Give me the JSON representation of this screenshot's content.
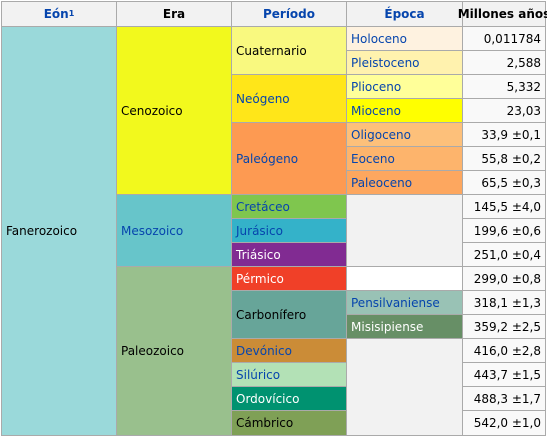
{
  "headers": {
    "eon": "Eón",
    "eon_note": "1",
    "era": "Era",
    "periodo": "Período",
    "epoca": "Época",
    "millones": "Millones años"
  },
  "eon": {
    "label": "Fanerozoico",
    "color": "#9ad9da"
  },
  "eras": [
    {
      "label": "Cenozoico",
      "color": "#f2f91d"
    },
    {
      "label": "Mesozoico",
      "color": "#67c5ca"
    },
    {
      "label": "Paleozoico",
      "color": "#99c08d"
    }
  ],
  "periods": [
    {
      "label": "Cuaternario",
      "color": "#f9f97f"
    },
    {
      "label": "Neógeno",
      "color": "#ffe619"
    },
    {
      "label": "Paleógeno",
      "color": "#fd9a52"
    },
    {
      "label": "Cretáceo",
      "color": "#7fc64e"
    },
    {
      "label": "Jurásico",
      "color": "#34b2c9"
    },
    {
      "label": "Triásico",
      "color": "#812b92"
    },
    {
      "label": "Pérmico",
      "color": "#f04028"
    },
    {
      "label": "Carbonífero",
      "color": "#67a599"
    },
    {
      "label": "Devónico",
      "color": "#cb8c37"
    },
    {
      "label": "Silúrico",
      "color": "#b3e1b6"
    },
    {
      "label": "Ordovícico",
      "color": "#009270"
    },
    {
      "label": "Cámbrico",
      "color": "#7fa056"
    }
  ],
  "epochs": [
    {
      "label": "Holoceno",
      "color": "#fef2e0"
    },
    {
      "label": "Pleistoceno",
      "color": "#fff2ae"
    },
    {
      "label": "Plioceno",
      "color": "#ffff99"
    },
    {
      "label": "Mioceno",
      "color": "#ffff00"
    },
    {
      "label": "Oligoceno",
      "color": "#fdc07a"
    },
    {
      "label": "Eoceno",
      "color": "#fdb46c"
    },
    {
      "label": "Paleoceno",
      "color": "#fda75f"
    },
    {
      "label": "Pensilvaniense",
      "color": "#99c2b5"
    },
    {
      "label": "Misisipiense",
      "color": "#678f66"
    }
  ],
  "ages": [
    "0,011784",
    "2,588",
    "5,332",
    "23,03",
    "33,9 ±0,1",
    "55,8 ±0,2",
    "65,5 ±0,3",
    "145,5 ±4,0",
    "199,6 ±0,6",
    "251,0 ±0,4",
    "299,0 ±0,8",
    "318,1 ±1,3",
    "359,2 ±2,5",
    "416,0 ±2,8",
    "443,7 ±1,5",
    "488,3 ±1,7",
    "542,0 ±1,0"
  ]
}
